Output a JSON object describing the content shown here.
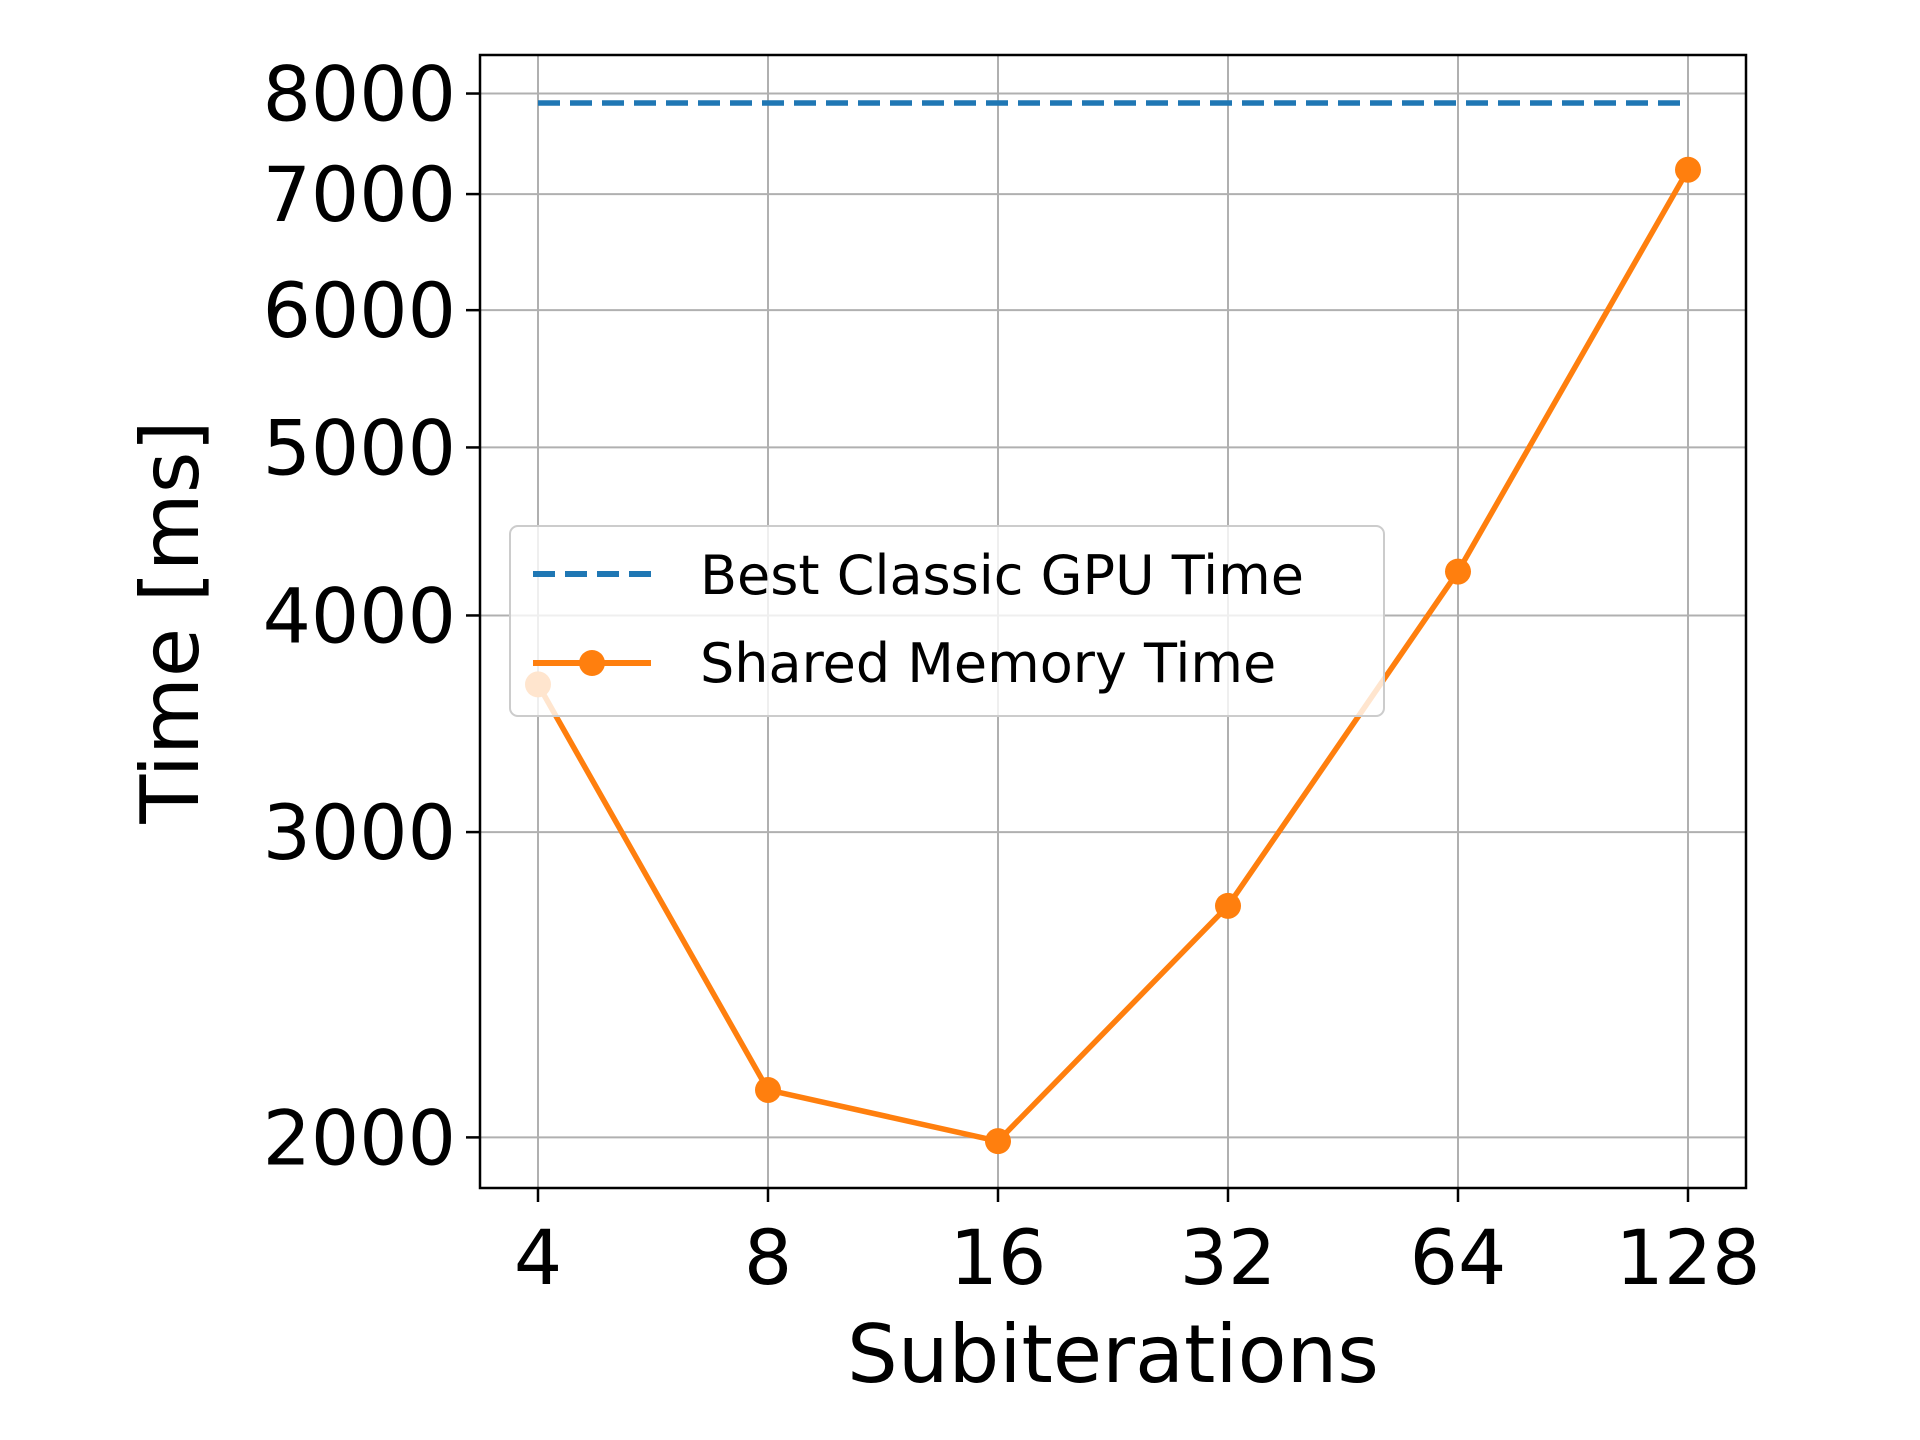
{
  "chart_data": {
    "type": "line",
    "xlabel": "Subiterations",
    "ylabel": "Time [ms]",
    "x_scale": "log2",
    "y_scale": "log",
    "x": [
      4,
      8,
      16,
      32,
      64,
      128
    ],
    "x_tick_labels": [
      "4",
      "8",
      "16",
      "32",
      "64",
      "128"
    ],
    "y_ticks": [
      2000,
      3000,
      4000,
      5000,
      6000,
      7000,
      8000
    ],
    "y_tick_labels": [
      "2000",
      "3000",
      "4000",
      "5000",
      "6000",
      "7000",
      "8000"
    ],
    "ylim": [
      1870,
      8420
    ],
    "grid": true,
    "legend_position": "center-left",
    "series": [
      {
        "name": "Best Classic GPU Time",
        "style": "dashed",
        "color": "#1f77b4",
        "marker": "none",
        "values": [
          7900,
          7900,
          7900,
          7900,
          7900,
          7900
        ]
      },
      {
        "name": "Shared Memory Time",
        "style": "solid",
        "color": "#ff7f0e",
        "marker": "circle",
        "values": [
          3650,
          2130,
          1990,
          2720,
          4240,
          7230
        ]
      }
    ]
  }
}
